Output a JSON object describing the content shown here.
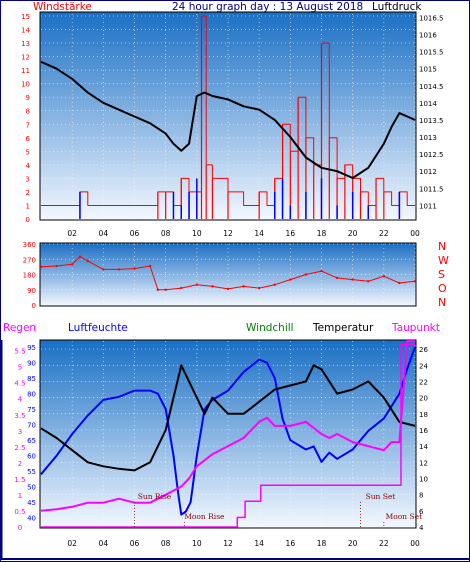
{
  "header": {
    "title": "24 hour graph day : 13 August 2018",
    "left_label": "Windstärke",
    "right_label": "Luftdruck"
  },
  "colors": {
    "panel_top": "#1a6fc4",
    "panel_bottom": "#f4f8ff",
    "wind": "#ff0000",
    "gust": "#0000ff",
    "pressure": "#000000",
    "direction": "#ff0000",
    "humidity": "#0000ff",
    "temperature": "#000000",
    "dewpoint": "#ff00ff",
    "rain": "#ff00ff",
    "sun_moon": "#800000",
    "frame": "#000080"
  },
  "chart_data": [
    {
      "type": "line",
      "panel": "wind-pressure",
      "title": "24 hour graph day : 13 August 2018",
      "y_left_label": "Windstärke",
      "y_right_label": "Luftdruck",
      "x_ticks": [
        "02",
        "04",
        "06",
        "08",
        "10",
        "12",
        "14",
        "16",
        "18",
        "20",
        "22",
        "00"
      ],
      "y_left_ticks": [
        0,
        1,
        2,
        3,
        4,
        5,
        6,
        7,
        8,
        9,
        10,
        11,
        12,
        13,
        14,
        15
      ],
      "y_left_range": [
        0,
        15
      ],
      "y_right_ticks": [
        1011,
        1011.5,
        1012,
        1012.5,
        1013,
        1013.5,
        1014,
        1014.5,
        1015,
        1015.5,
        1016,
        1016.5
      ],
      "y_right_range": [
        1010.6,
        1016.6
      ],
      "x_range": [
        0,
        24
      ],
      "series": [
        {
          "name": "Luftdruck",
          "axis": "right",
          "x": [
            0,
            1,
            2,
            3,
            4,
            5,
            6,
            7,
            8,
            8.5,
            9,
            9.5,
            10,
            10.5,
            11,
            12,
            13,
            14,
            15,
            16,
            17,
            18,
            19,
            20,
            21,
            22,
            22.5,
            23,
            23.5,
            24
          ],
          "values": [
            1015.2,
            1015.0,
            1014.7,
            1014.3,
            1014.0,
            1013.8,
            1013.6,
            1013.4,
            1013.1,
            1012.8,
            1012.6,
            1012.8,
            1014.2,
            1014.3,
            1014.2,
            1014.1,
            1013.9,
            1013.8,
            1013.5,
            1013.0,
            1012.4,
            1012.1,
            1012.0,
            1011.8,
            1012.1,
            1012.8,
            1013.3,
            1013.7,
            1013.6,
            1013.5
          ]
        },
        {
          "name": "wind",
          "axis": "left",
          "x": [
            0,
            1,
            2,
            2.5,
            3,
            4,
            5,
            6,
            7,
            7.5,
            8,
            8.5,
            9,
            9.5,
            10,
            10.3,
            10.6,
            11,
            12,
            13,
            14,
            14.5,
            15,
            15.5,
            16,
            16.5,
            17,
            17.5,
            18,
            18.5,
            19,
            19.5,
            20,
            20.5,
            21,
            21.5,
            22,
            22.5,
            23,
            23.5,
            24
          ],
          "values": [
            1,
            1,
            1,
            2,
            1,
            1,
            1,
            1,
            1,
            2,
            2,
            1,
            3,
            2,
            2,
            15,
            4,
            3,
            2,
            1,
            2,
            1,
            3,
            7,
            5,
            9,
            6,
            4,
            13,
            6,
            3,
            4,
            3,
            2,
            1,
            3,
            2,
            1,
            2,
            1,
            1
          ]
        },
        {
          "name": "gust",
          "axis": "left",
          "x": [
            0,
            2.5,
            3,
            8.5,
            9,
            9.5,
            10,
            11,
            15,
            15.5,
            16,
            17,
            18,
            19,
            20,
            21,
            22,
            23,
            24
          ],
          "values": [
            0,
            2,
            0,
            2,
            1,
            2,
            3,
            0,
            2,
            3,
            1,
            2,
            3,
            1,
            2,
            1,
            0,
            2,
            0
          ]
        }
      ]
    },
    {
      "type": "scatter",
      "panel": "wind-direction",
      "x_range": [
        0,
        24
      ],
      "y_ticks": [
        0,
        90,
        180,
        270,
        360
      ],
      "y_range": [
        0,
        360
      ],
      "compass_labels": [
        "N",
        "W",
        "S",
        "O",
        "N"
      ],
      "series": [
        {
          "name": "direction",
          "x": [
            0,
            1,
            2,
            2.5,
            3,
            4,
            5,
            6,
            7,
            7.5,
            8,
            9,
            10,
            11,
            12,
            13,
            14,
            15,
            16,
            17,
            18,
            19,
            20,
            21,
            22,
            23,
            24
          ],
          "values": [
            225,
            230,
            240,
            285,
            260,
            210,
            210,
            215,
            230,
            90,
            90,
            100,
            120,
            110,
            95,
            110,
            100,
            120,
            150,
            180,
            200,
            160,
            150,
            140,
            170,
            130,
            140
          ]
        }
      ]
    },
    {
      "type": "line",
      "panel": "temperature-humidity",
      "legend": [
        "Regen",
        "Luftfeuchte",
        "Windchill",
        "Temperatur",
        "Taupunkt"
      ],
      "x_ticks": [
        "02",
        "04",
        "06",
        "08",
        "10",
        "12",
        "14",
        "16",
        "18",
        "20",
        "22",
        "00"
      ],
      "x_range": [
        0,
        24
      ],
      "rain_ticks": [
        0,
        0.5,
        1,
        1.5,
        2,
        2.5,
        3,
        3.5,
        4,
        4.5,
        5,
        5.5
      ],
      "rain_range": [
        0,
        5.8
      ],
      "humidity_ticks": [
        40,
        45,
        50,
        55,
        60,
        65,
        70,
        75,
        80,
        85,
        90,
        95
      ],
      "humidity_range": [
        37,
        97
      ],
      "temperature_ticks": [
        4,
        6,
        8,
        10,
        12,
        14,
        16,
        18,
        20,
        22,
        24,
        26
      ],
      "temperature_range": [
        4,
        27
      ],
      "annotations": [
        {
          "text": "Sun Rise",
          "x": 6.0
        },
        {
          "text": "Moon Rise",
          "x": 9.2
        },
        {
          "text": "Sun Set",
          "x": 20.5
        },
        {
          "text": "Moon Set",
          "x": 22.0
        }
      ],
      "series": [
        {
          "name": "Luftfeuchte",
          "axis": "humidity",
          "x": [
            0,
            0.5,
            1,
            2,
            3,
            4,
            5,
            6,
            7,
            7.5,
            8,
            8.5,
            8.8,
            9,
            9.3,
            9.6,
            10,
            10.5,
            11,
            12,
            13,
            14,
            14.5,
            15,
            15.5,
            16,
            17,
            17.5,
            18,
            18.5,
            19,
            20,
            21,
            22,
            23,
            23.5,
            24
          ],
          "values": [
            54,
            57,
            60,
            67,
            73,
            78,
            79,
            81,
            81,
            80,
            75,
            60,
            48,
            41,
            42,
            45,
            60,
            75,
            78,
            81,
            87,
            91,
            90,
            85,
            72,
            65,
            62,
            63,
            58,
            61,
            59,
            62,
            68,
            72,
            80,
            88,
            95
          ]
        },
        {
          "name": "Temperatur",
          "axis": "temperature",
          "x": [
            0,
            1,
            2,
            3,
            4,
            5,
            6,
            7,
            8,
            8.5,
            9,
            9.5,
            10,
            10.5,
            11,
            12,
            13,
            14,
            15,
            16,
            17,
            17.5,
            18,
            18.5,
            19,
            20,
            21,
            22,
            23,
            24
          ],
          "values": [
            16.2,
            15.0,
            13.5,
            12.0,
            11.5,
            11.2,
            11.0,
            12.0,
            16.0,
            20.0,
            24.0,
            22.0,
            20.0,
            18.0,
            20.0,
            18.0,
            18.0,
            19.5,
            21.0,
            21.5,
            22.0,
            24.0,
            23.5,
            22.0,
            20.5,
            21.0,
            22.0,
            20.0,
            17.0,
            16.5
          ]
        },
        {
          "name": "Taupunkt",
          "axis": "temperature",
          "x": [
            0,
            1,
            2,
            3,
            4,
            5,
            6,
            7,
            8,
            8.5,
            9,
            9.5,
            10,
            11,
            12,
            13,
            14,
            14.5,
            15,
            16,
            17,
            18,
            18.5,
            19,
            20,
            21,
            22,
            22.5,
            23,
            23.5,
            24
          ],
          "values": [
            6.0,
            6.2,
            6.5,
            7.0,
            7.0,
            7.5,
            7.0,
            7.0,
            8.0,
            8.5,
            9.0,
            10.0,
            11.5,
            13.0,
            14.0,
            15.0,
            17.0,
            17.5,
            16.5,
            16.5,
            17.0,
            15.5,
            15.0,
            15.5,
            14.5,
            14.0,
            13.5,
            14.5,
            14.5,
            27.0,
            27.0
          ]
        },
        {
          "name": "Regen",
          "axis": "rain",
          "x": [
            0,
            12.5,
            12.6,
            13.0,
            13.1,
            14.0,
            14.1,
            23.0,
            23.1,
            24
          ],
          "values": [
            0,
            0,
            0.3,
            0.3,
            0.8,
            0.8,
            1.3,
            1.3,
            5.7,
            5.7
          ]
        }
      ]
    }
  ]
}
